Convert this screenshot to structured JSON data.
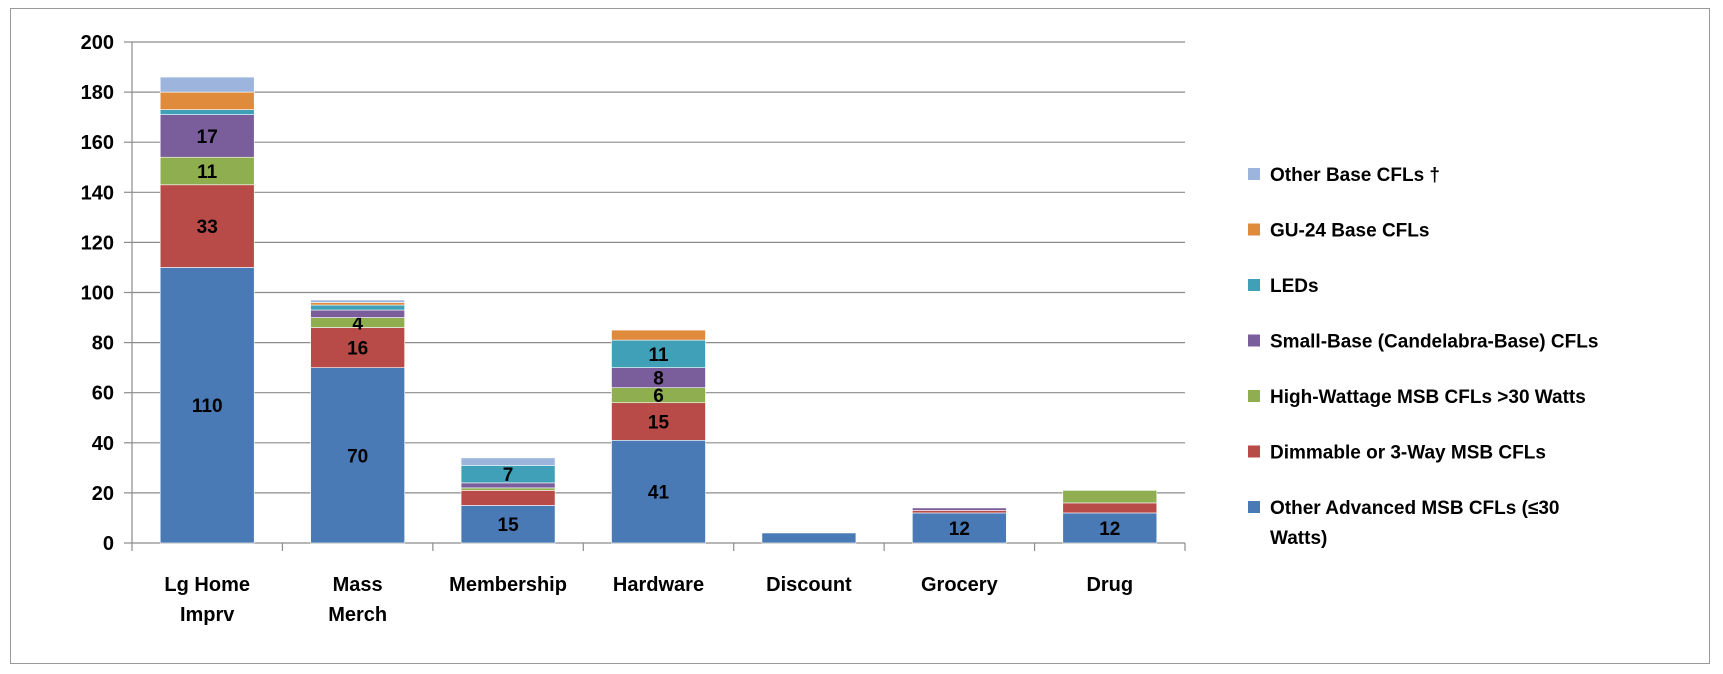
{
  "chart_data": {
    "type": "bar",
    "stacked": true,
    "categories": [
      [
        "Lg Home",
        "Imprv"
      ],
      [
        "Mass",
        "Merch"
      ],
      [
        "Membership"
      ],
      [
        "Hardware"
      ],
      [
        "Discount"
      ],
      [
        "Grocery"
      ],
      [
        "Drug"
      ]
    ],
    "ylim": [
      0,
      200
    ],
    "yticks": [
      0,
      20,
      40,
      60,
      80,
      100,
      120,
      140,
      160,
      180,
      200
    ],
    "grid": true,
    "legend_position": "right",
    "series": [
      {
        "name": "Other Advanced MSB CFLs (≤30 Watts)",
        "legend_lines": [
          "Other Advanced MSB CFLs (≤30",
          "Watts)"
        ],
        "color": "#4a7ab5",
        "values": [
          110,
          70,
          15,
          41,
          4,
          12,
          12
        ],
        "labels": [
          "110",
          "70",
          "15",
          "41",
          "",
          "12",
          "12"
        ]
      },
      {
        "name": "Dimmable or 3-Way MSB CFLs",
        "legend_lines": [
          "Dimmable or 3-Way MSB CFLs"
        ],
        "color": "#b84a47",
        "values": [
          33,
          16,
          6,
          15,
          0,
          1,
          4
        ],
        "labels": [
          "33",
          "16",
          "",
          "15",
          "",
          "",
          ""
        ]
      },
      {
        "name": "High-Wattage MSB CFLs >30 Watts",
        "legend_lines": [
          "High-Wattage MSB CFLs >30 Watts"
        ],
        "color": "#8fae4f",
        "values": [
          11,
          4,
          1,
          6,
          0,
          0,
          5
        ],
        "labels": [
          "11",
          "4",
          "",
          "6",
          "",
          "",
          ""
        ]
      },
      {
        "name": "Small-Base (Candelabra-Base) CFLs",
        "legend_lines": [
          "Small-Base (Candelabra-Base) CFLs"
        ],
        "color": "#7a5d9b",
        "values": [
          17,
          3,
          2,
          8,
          0,
          1,
          0
        ],
        "labels": [
          "17",
          "",
          "",
          "8",
          "",
          "",
          ""
        ]
      },
      {
        "name": "LEDs",
        "legend_lines": [
          "LEDs"
        ],
        "color": "#40a0b8",
        "values": [
          2,
          2,
          7,
          11,
          0,
          0,
          0
        ],
        "labels": [
          "",
          "",
          "7",
          "11",
          "",
          "",
          ""
        ]
      },
      {
        "name": "GU-24 Base CFLs",
        "legend_lines": [
          "GU-24 Base CFLs"
        ],
        "color": "#e08a3c",
        "values": [
          7,
          1,
          0,
          4,
          0,
          0,
          0
        ],
        "labels": [
          "",
          "",
          "",
          "",
          "",
          "",
          ""
        ]
      },
      {
        "name": "Other Base CFLs †",
        "legend_lines": [
          "Other Base CFLs †"
        ],
        "color": "#9db4dc",
        "values": [
          6,
          1,
          3,
          0,
          0,
          0,
          0
        ],
        "labels": [
          "",
          "",
          "",
          "",
          "",
          "",
          ""
        ]
      }
    ]
  }
}
